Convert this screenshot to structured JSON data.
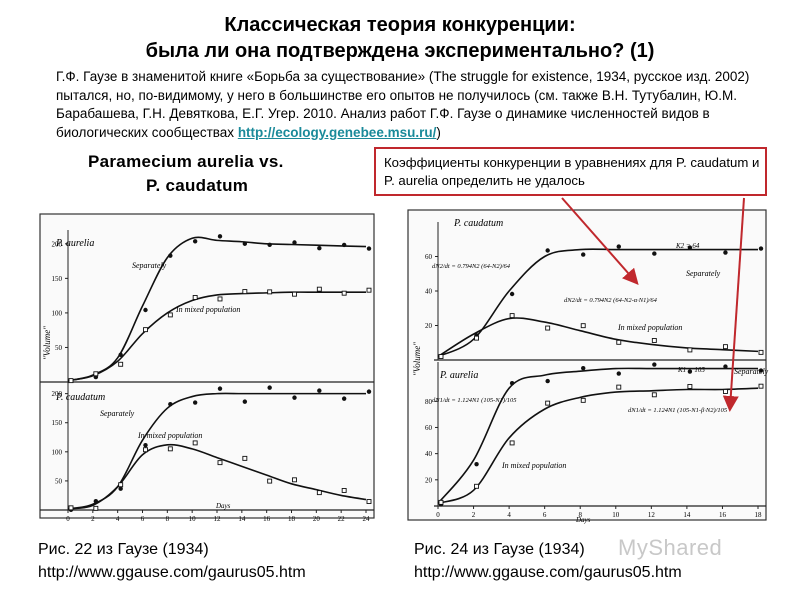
{
  "header": {
    "title_line1": "Классическая теория конкуренции:",
    "title_line2": "была ли она подтверждена экспериментально? (1)"
  },
  "intro": {
    "text": "Г.Ф. Гаузе в знаменитой книге «Борьба за существование» (The struggle for existence, 1934, русское изд. 2002) пытался, но, по-видимому, у него в большинстве его опытов не получилось (см. также В.Н. Тутубалин, Ю.М. Барабашева, Г.Н. Девяткова, Е.Г. Угер. 2010. Анализ работ Г.Ф. Гаузе о динамике численностей видов в биологических сообществах ",
    "link": "http://ecology.genebee.msu.ru/",
    "close": ")"
  },
  "left_figure": {
    "title_line1": "Paramecium aurelia vs.",
    "title_line2": "P. caudatum",
    "caption_line1": "Рис. 22 из Гаузе (1934)",
    "caption_line2": "http://www.ggause.com/gaurus05.htm"
  },
  "right_figure": {
    "caption_line1": "Рис. 24 из Гаузе (1934)",
    "caption_line2": "http://www.ggause.com/gaurus05.htm"
  },
  "callout": {
    "text": "Коэффициенты конкуренции в уравнениях для P. caudatum и P. aurelia определить не удалось"
  },
  "watermark": "MyShared",
  "colors": {
    "callout_border": "#c0282d",
    "arrow": "#c0282d",
    "link": "#1a8a9a"
  },
  "chart_data": [
    {
      "type": "line",
      "panel": "left-top",
      "series_label": "P. aurelia",
      "ylabel": "\"Volume\"",
      "y_ticks": [
        "50",
        "100",
        "150",
        "200"
      ],
      "ylim": [
        0,
        220
      ],
      "x": [
        0,
        2,
        4,
        6,
        8,
        10,
        12,
        14,
        16,
        18,
        20,
        22,
        24
      ],
      "series": [
        {
          "name": "Separately",
          "values": [
            2,
            10,
            35,
            110,
            180,
            208,
            205,
            203,
            200,
            199,
            198,
            197,
            196
          ]
        },
        {
          "name": "In mixed population",
          "values": [
            2,
            9,
            30,
            70,
            100,
            118,
            126,
            128,
            129,
            130,
            130,
            130,
            130
          ]
        }
      ]
    },
    {
      "type": "line",
      "panel": "left-bottom",
      "series_label": "P. caudatum",
      "y_ticks": [
        "50",
        "100",
        "150",
        "200"
      ],
      "ylim": [
        0,
        220
      ],
      "x": [
        0,
        2,
        4,
        6,
        8,
        10,
        12,
        14,
        16,
        18,
        20,
        22,
        24
      ],
      "xlabel": "Days",
      "x_ticks": [
        "0",
        "2",
        "4",
        "6",
        "8",
        "10",
        "12",
        "14",
        "16",
        "18",
        "20",
        "22",
        "24"
      ],
      "series": [
        {
          "name": "Separately",
          "values": [
            2,
            10,
            40,
            120,
            175,
            195,
            200,
            200,
            200,
            200,
            200,
            200,
            200
          ]
        },
        {
          "name": "In mixed population",
          "values": [
            2,
            8,
            40,
            95,
            112,
            105,
            90,
            75,
            60,
            45,
            35,
            25,
            18
          ]
        }
      ]
    },
    {
      "type": "line",
      "panel": "right-top",
      "series_label": "P. caudatum",
      "ylabel": "\"Volume\"",
      "y_ticks": [
        "20",
        "40",
        "60"
      ],
      "ylim": [
        0,
        80
      ],
      "annotations": [
        "dN2/dt = 0.794N2 (64-N2)/64",
        "dN2/dt = 0.794N2 (64-N2-α·N1)/64",
        "K2 = 64"
      ],
      "x": [
        0,
        2,
        4,
        6,
        8,
        10,
        12,
        14,
        16,
        18
      ],
      "series": [
        {
          "name": "Separately",
          "values": [
            2,
            12,
            40,
            60,
            64,
            64,
            64,
            64,
            64,
            64
          ]
        },
        {
          "name": "In mixed population",
          "values": [
            2,
            15,
            24,
            22,
            17,
            12,
            9,
            7,
            6,
            5
          ]
        }
      ]
    },
    {
      "type": "line",
      "panel": "right-bottom",
      "series_label": "P. aurelia",
      "y_ticks": [
        "20",
        "40",
        "60",
        "80"
      ],
      "ylim": [
        0,
        110
      ],
      "annotations": [
        "dN1/dt = 1.124N1 (105-N1)/105",
        "dN1/dt = 1.124N1 (105-N1-β·N2)/105",
        "K1 = 105"
      ],
      "x": [
        0,
        2,
        4,
        6,
        8,
        10,
        12,
        14,
        16,
        18
      ],
      "xlabel": "Days",
      "x_ticks": [
        "0",
        "2",
        "4",
        "6",
        "8",
        "10",
        "12",
        "14",
        "16",
        "18"
      ],
      "series": [
        {
          "name": "Separately",
          "values": [
            2,
            35,
            90,
            100,
            103,
            105,
            105,
            105,
            105,
            105
          ]
        },
        {
          "name": "In mixed population",
          "values": [
            2,
            12,
            52,
            74,
            83,
            87,
            88,
            89,
            89,
            90
          ]
        }
      ]
    }
  ]
}
